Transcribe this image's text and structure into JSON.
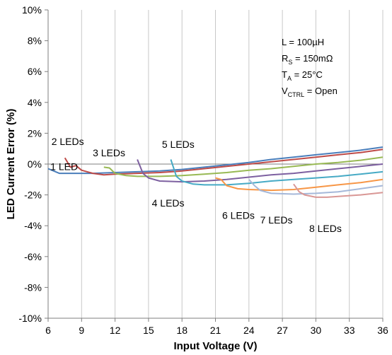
{
  "chart_data": {
    "type": "line",
    "title": "",
    "xlabel": "Input Voltage (V)",
    "ylabel": "LED Current Error (%)",
    "xlim": [
      6,
      36
    ],
    "ylim": [
      -10,
      10
    ],
    "xticks": [
      6,
      9,
      12,
      15,
      18,
      21,
      24,
      27,
      30,
      33,
      36
    ],
    "yticks": [
      -10,
      -8,
      -6,
      -4,
      -2,
      0,
      2,
      4,
      6,
      8,
      10
    ],
    "xtick_labels": [
      "6",
      "9",
      "12",
      "15",
      "18",
      "21",
      "24",
      "27",
      "30",
      "33",
      "36"
    ],
    "ytick_labels": [
      "-10%",
      "-8%",
      "-6%",
      "-4%",
      "-2%",
      "0%",
      "2%",
      "4%",
      "6%",
      "8%",
      "10%"
    ],
    "grid": "vertical",
    "annotations": [
      {
        "main": "L = 100µH",
        "sub": "",
        "tail": ""
      },
      {
        "main": "R",
        "sub": "S",
        "tail": " = 150mΩ"
      },
      {
        "main": "T",
        "sub": "A",
        "tail": " = 25°C"
      },
      {
        "main": "V",
        "sub": "CTRL",
        "tail": " = Open"
      }
    ],
    "series": [
      {
        "label": "1 LED",
        "color": "#4a7ebb",
        "label_at": [
          6.2,
          -0.4
        ],
        "x": [
          6,
          7,
          8,
          9,
          10,
          12,
          14,
          16,
          18,
          20,
          22,
          24,
          26,
          28,
          30,
          32,
          34,
          36
        ],
        "y": [
          -0.3,
          -0.6,
          -0.6,
          -0.6,
          -0.6,
          -0.55,
          -0.5,
          -0.45,
          -0.35,
          -0.2,
          -0.05,
          0.1,
          0.3,
          0.45,
          0.6,
          0.75,
          0.9,
          1.1
        ]
      },
      {
        "label": "2 LEDs",
        "color": "#be4b48",
        "label_at": [
          6.3,
          1.25
        ],
        "x": [
          7.5,
          8,
          8.5,
          9,
          10,
          11,
          12,
          14,
          16,
          18,
          20,
          22,
          24,
          26,
          28,
          30,
          32,
          34,
          36
        ],
        "y": [
          0.4,
          -0.2,
          -0.1,
          -0.4,
          -0.6,
          -0.7,
          -0.65,
          -0.6,
          -0.55,
          -0.45,
          -0.3,
          -0.15,
          0.0,
          0.15,
          0.3,
          0.45,
          0.6,
          0.75,
          0.95
        ]
      },
      {
        "label": "3 LEDs",
        "color": "#98b954",
        "label_at": [
          10.0,
          0.5
        ],
        "x": [
          11,
          11.5,
          12,
          13,
          14,
          16,
          18,
          20,
          22,
          24,
          26,
          28,
          30,
          32,
          34,
          36
        ],
        "y": [
          -0.2,
          -0.25,
          -0.6,
          -0.75,
          -0.8,
          -0.8,
          -0.75,
          -0.65,
          -0.55,
          -0.4,
          -0.3,
          -0.15,
          0.0,
          0.1,
          0.25,
          0.45
        ]
      },
      {
        "label": "4 LEDs",
        "color": "#7d60a0",
        "label_at": [
          15.3,
          -2.75
        ],
        "x": [
          14,
          14.5,
          15,
          16,
          18,
          20,
          22,
          24,
          26,
          28,
          30,
          32,
          34,
          36
        ],
        "y": [
          0.3,
          -0.6,
          -0.9,
          -1.1,
          -1.15,
          -1.1,
          -1.0,
          -0.85,
          -0.7,
          -0.6,
          -0.45,
          -0.3,
          -0.15,
          0.0
        ]
      },
      {
        "label": "5 LEDs",
        "color": "#46aac5",
        "label_at": [
          16.2,
          1.05
        ],
        "x": [
          17,
          17.5,
          18,
          19,
          20,
          22,
          24,
          26,
          28,
          30,
          32,
          34,
          36
        ],
        "y": [
          0.3,
          -0.8,
          -1.1,
          -1.3,
          -1.35,
          -1.35,
          -1.25,
          -1.1,
          -1.0,
          -0.9,
          -0.8,
          -0.65,
          -0.5
        ]
      },
      {
        "label": "6 LEDs",
        "color": "#f79646",
        "label_at": [
          21.6,
          -3.55
        ],
        "x": [
          21,
          21.5,
          22,
          23,
          24,
          26,
          28,
          30,
          32,
          34,
          36
        ],
        "y": [
          -0.9,
          -1.0,
          -1.4,
          -1.6,
          -1.65,
          -1.7,
          -1.65,
          -1.5,
          -1.35,
          -1.2,
          -1.0
        ]
      },
      {
        "label": "7 LEDs",
        "color": "#a5b8d9",
        "label_at": [
          25.0,
          -3.85
        ],
        "x": [
          24,
          24.5,
          25,
          26,
          28,
          30,
          32,
          34,
          36
        ],
        "y": [
          -1.0,
          -1.4,
          -1.7,
          -1.9,
          -1.95,
          -1.9,
          -1.8,
          -1.6,
          -1.4
        ]
      },
      {
        "label": "8 LEDs",
        "color": "#d99795",
        "label_at": [
          29.4,
          -4.4
        ],
        "x": [
          28,
          28.5,
          29,
          30,
          31,
          32,
          34,
          36
        ],
        "y": [
          -1.3,
          -1.8,
          -2.0,
          -2.15,
          -2.15,
          -2.1,
          -2.0,
          -1.85
        ]
      }
    ]
  }
}
